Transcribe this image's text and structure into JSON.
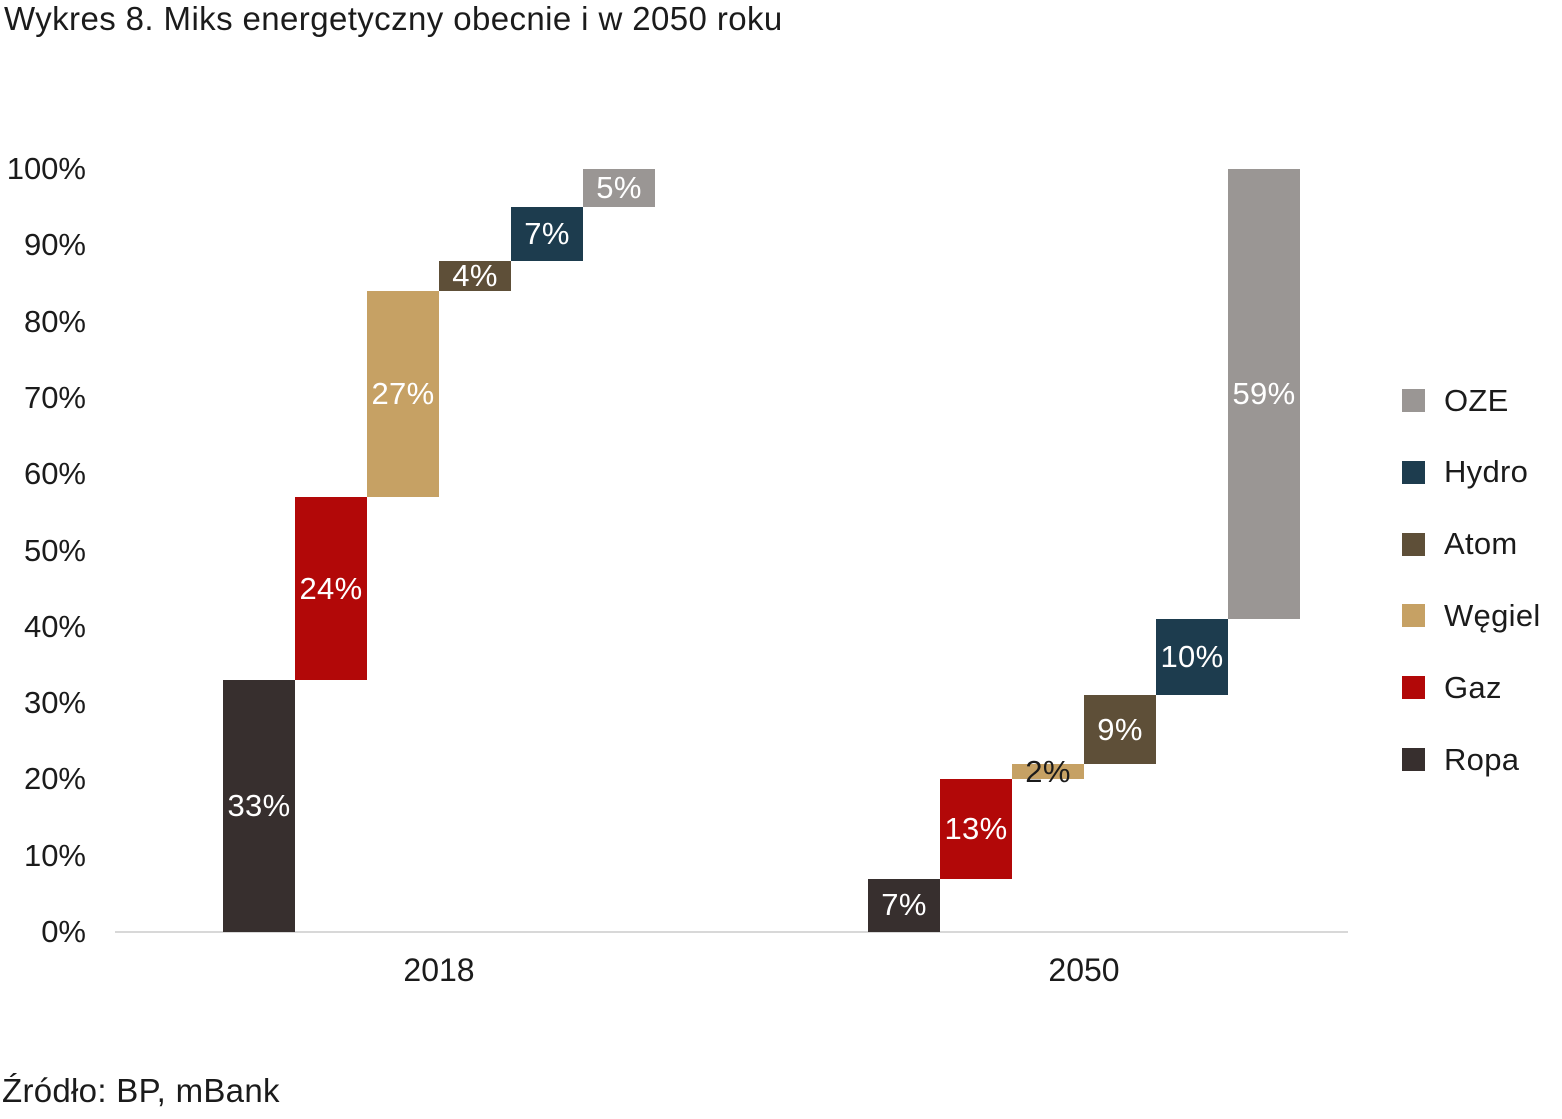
{
  "title": "Wykres 8. Miks energetyczny obecnie i w 2050 roku",
  "source": "Źródło: BP, mBank",
  "chart_data": {
    "type": "bar",
    "subtype": "waterfall-stacked",
    "title": "Wykres 8. Miks energetyczny obecnie i w 2050 roku",
    "categories": [
      "2018",
      "2050"
    ],
    "series": [
      {
        "name": "Ropa",
        "color": "#372f2e",
        "values": [
          33,
          7
        ],
        "labels": [
          "33%",
          "7%"
        ]
      },
      {
        "name": "Gaz",
        "color": "#b20808",
        "values": [
          24,
          13
        ],
        "labels": [
          "24%",
          "13%"
        ]
      },
      {
        "name": "Węgiel",
        "color": "#c6a164",
        "values": [
          27,
          2
        ],
        "labels": [
          "27%",
          "2%"
        ]
      },
      {
        "name": "Atom",
        "color": "#5e4f38",
        "values": [
          4,
          9
        ],
        "labels": [
          "4%",
          "9%"
        ]
      },
      {
        "name": "Hydro",
        "color": "#1d3c4e",
        "values": [
          7,
          10
        ],
        "labels": [
          "7%",
          "10%"
        ]
      },
      {
        "name": "OZE",
        "color": "#9a9694",
        "values": [
          5,
          59
        ],
        "labels": [
          "5%",
          "59%"
        ]
      }
    ],
    "ylabel": "",
    "xlabel": "",
    "ylim": [
      0,
      100
    ],
    "y_ticks": [
      "0%",
      "10%",
      "20%",
      "30%",
      "40%",
      "50%",
      "60%",
      "70%",
      "80%",
      "90%",
      "100%"
    ],
    "grid": false,
    "legend_position": "right",
    "legend_order_top_to_bottom": [
      "OZE",
      "Hydro",
      "Atom",
      "Węgiel",
      "Gaz",
      "Ropa"
    ],
    "label_color_inside": "#ffffff",
    "label_color_outside": "#1b1b1b",
    "axis_line_color": "#d8d8d8"
  }
}
